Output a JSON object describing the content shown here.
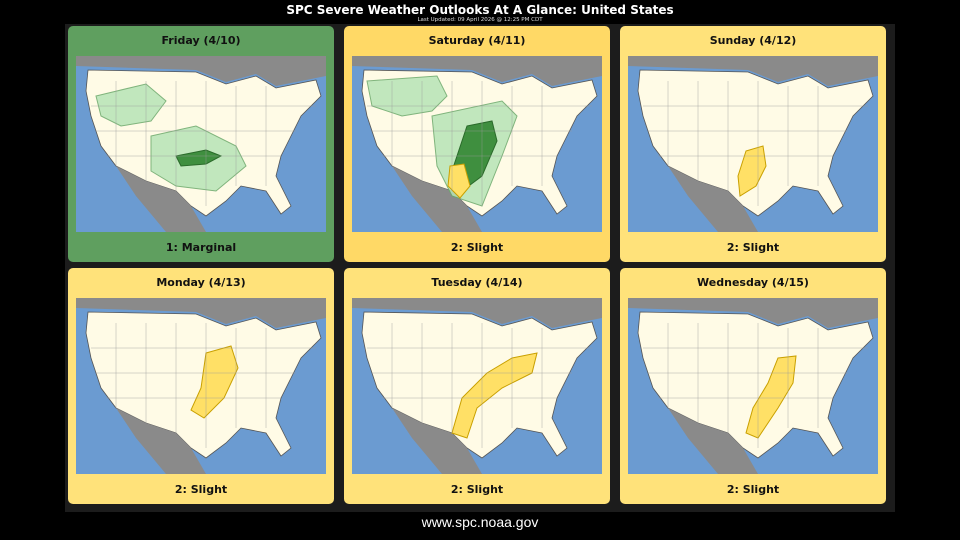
{
  "header": {
    "title": "SPC Severe Weather Outlooks At A Glance: United States",
    "updated": "Last Updated: 09 April 2026 @ 12:25 PM CDT"
  },
  "colors": {
    "marginal": "#66a366",
    "slight": "#ffe066",
    "panel_slight_bg": "#ffe27a",
    "panel_marginal_bg": "#5f9f5f",
    "ocean": "#6b9bd1",
    "land": "#fffbe6",
    "foreign_land": "#888888"
  },
  "panels": [
    {
      "title": "Friday (4/10)",
      "label": "1: Marginal",
      "risk": "marginal"
    },
    {
      "title": "Saturday (4/11)",
      "label": "2: Slight",
      "risk": "slight"
    },
    {
      "title": "Sunday (4/12)",
      "label": "2: Slight",
      "risk": "slight"
    },
    {
      "title": "Monday (4/13)",
      "label": "2: Slight",
      "risk": "slight"
    },
    {
      "title": "Tuesday (4/14)",
      "label": "2: Slight",
      "risk": "slight"
    },
    {
      "title": "Wednesday (4/15)",
      "label": "2: Slight",
      "risk": "slight"
    }
  ],
  "footer": {
    "url": "www.spc.noaa.gov"
  }
}
